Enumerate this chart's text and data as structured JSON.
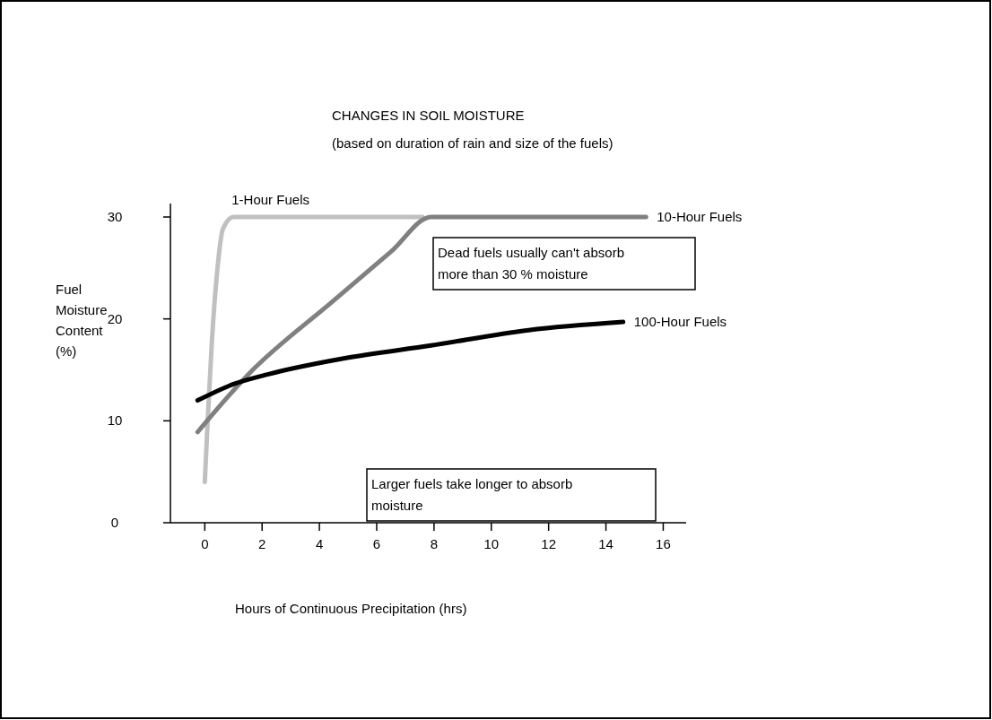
{
  "chart_data": {
    "type": "line",
    "title": "CHANGES IN SOIL MOISTURE",
    "subtitle": "(based on duration of rain and size of the fuels)",
    "xlabel": "Hours of Continuous Precipitation (hrs)",
    "ylabel": "Fuel Moisture Content (%)",
    "xlim": [
      -1.2,
      16.8
    ],
    "xticks": [
      0,
      2,
      4,
      6,
      8,
      10,
      12,
      14,
      16
    ],
    "ylim": [
      0,
      30
    ],
    "yticks": [
      0,
      10,
      20,
      30
    ],
    "marker": "none",
    "line_style": "solid",
    "series": [
      {
        "name": "1-Hour Fuels",
        "color": "#c0c0c0",
        "x": [
          0,
          0.1,
          0.25,
          0.44,
          0.63,
          1.0,
          7.6
        ],
        "values": [
          4,
          10,
          17.9,
          24.9,
          28.8,
          30,
          30
        ]
      },
      {
        "name": "10-Hour Fuels",
        "color": "#808080",
        "x": [
          -0.25,
          1.5,
          4.5,
          6.5,
          7.9,
          15.4
        ],
        "values": [
          8.9,
          14.5,
          21.8,
          26.6,
          30,
          30
        ]
      },
      {
        "name": "100-Hour Fuels",
        "color": "#000000",
        "x": [
          -0.25,
          1,
          2.25,
          4.8,
          7.9,
          11.3,
          14.6
        ],
        "values": [
          12,
          13.6,
          14.6,
          16.1,
          17.4,
          18.9,
          19.7
        ]
      }
    ],
    "annotations": [
      "Dead fuels usually can't absorb more than 30 % moisture",
      "Larger fuels take longer to absorb moisture"
    ]
  }
}
